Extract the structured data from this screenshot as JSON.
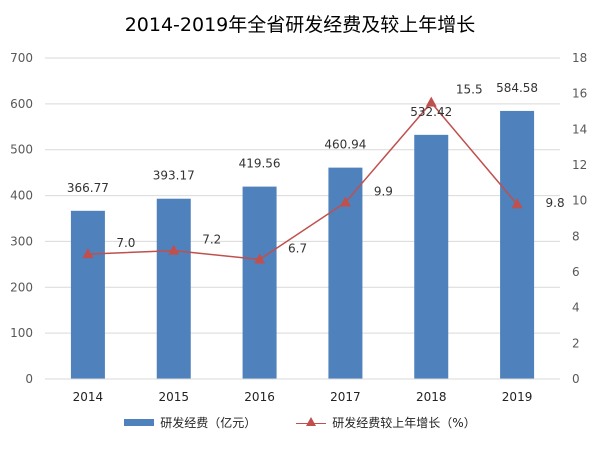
{
  "chart_data": {
    "type": "bar+line",
    "title": "2014-2019年全省研发经费及较上年增长",
    "categories": [
      "2014",
      "2015",
      "2016",
      "2017",
      "2018",
      "2019"
    ],
    "series": [
      {
        "name": "研发经费（亿元）",
        "type": "bar",
        "axis": "left",
        "values": [
          366.77,
          393.17,
          419.56,
          460.94,
          532.42,
          584.58
        ],
        "labels": [
          "366.77",
          "393.17",
          "419.56",
          "460.94",
          "532.42",
          "584.58"
        ],
        "color": "#4F81BD"
      },
      {
        "name": "研发经费较上年增长（%）",
        "type": "line",
        "axis": "right",
        "values": [
          7.0,
          7.2,
          6.7,
          9.9,
          15.5,
          9.8
        ],
        "labels": [
          "7.0",
          "7.2",
          "6.7",
          "9.9",
          "15.5",
          "9.8"
        ],
        "color": "#C0504D"
      }
    ],
    "y_left": {
      "min": 0,
      "max": 700,
      "step": 100,
      "ticks": [
        "0",
        "100",
        "200",
        "300",
        "400",
        "500",
        "600",
        "700"
      ]
    },
    "y_right": {
      "min": 0,
      "max": 18,
      "step": 2,
      "ticks": [
        "0",
        "2",
        "4",
        "6",
        "8",
        "10",
        "12",
        "14",
        "16",
        "18"
      ]
    },
    "grid": true,
    "legend": "bottom"
  }
}
